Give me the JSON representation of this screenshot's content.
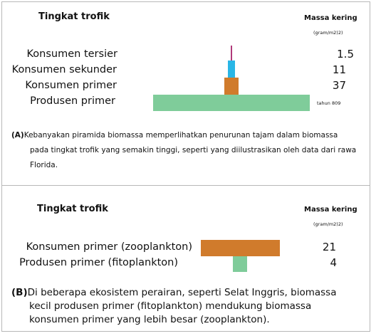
{
  "colors": {
    "green": "#7fcc9a",
    "orange": "#d07b2c",
    "cyan": "#29b6e6",
    "magenta": "#b03a7a"
  },
  "panel_a": {
    "heading": "Tingkat trofik",
    "mass_heading": "Massa kering",
    "unit": "(gram/m2)2)",
    "year_note": "tahun 809",
    "levels": [
      {
        "label": "Konsumen tersier",
        "value": "1.5"
      },
      {
        "label": "Konsumen sekunder",
        "value": "11"
      },
      {
        "label": "Konsumen primer",
        "value": "37"
      },
      {
        "label": "Produsen primer",
        "value": "809"
      }
    ],
    "caption_letter": "(A)",
    "caption_lines": [
      "Kebanyakan piramida biomassa memperlihatkan penurunan tajam dalam biomassa",
      "pada tingkat trofik yang semakin tinggi, seperti yang diilustrasikan oleh data dari rawa",
      "Florida."
    ]
  },
  "panel_b": {
    "heading": "Tingkat trofik",
    "mass_heading": "Massa kering",
    "unit": "(gram/m2)2)",
    "levels": [
      {
        "label": "Konsumen primer (zooplankton)",
        "value": "21"
      },
      {
        "label": "Produsen primer (fitoplankton)",
        "value": "4"
      }
    ],
    "caption_letter": "(B)",
    "caption_lines": [
      "Di beberapa ekosistem perairan, seperti Selat Inggris, biomassa",
      "kecil produsen primer (fitoplankton) mendukung biomassa",
      "konsumen primer yang lebih besar (zooplankton)."
    ]
  }
}
